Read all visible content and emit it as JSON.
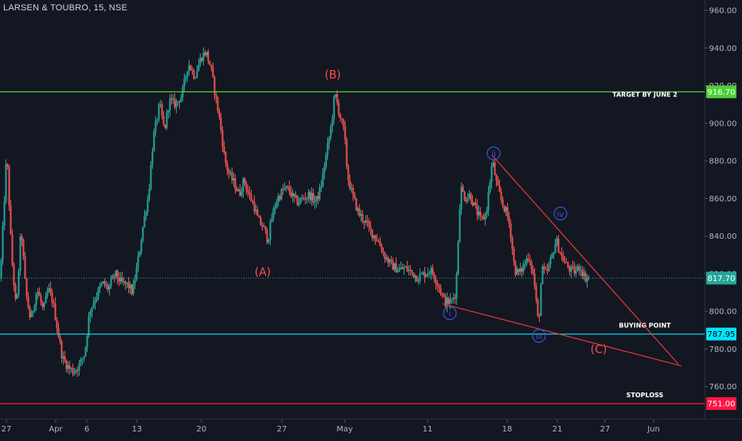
{
  "header": {
    "symbol_title": "LARSEN & TOUBRO, 15, NSE"
  },
  "chart_data": {
    "type": "candlestick",
    "y_axis": {
      "min": 751,
      "max": 960,
      "position": "right",
      "ticks": [
        {
          "v": 960,
          "label": "960.00"
        },
        {
          "v": 940,
          "label": "940.00"
        },
        {
          "v": 920,
          "label": "920.00"
        },
        {
          "v": 900,
          "label": "900.00"
        },
        {
          "v": 880,
          "label": "880.00"
        },
        {
          "v": 860,
          "label": "860.00"
        },
        {
          "v": 840,
          "label": "840.00"
        },
        {
          "v": 820,
          "label": "820.00"
        },
        {
          "v": 800,
          "label": "800.00"
        },
        {
          "v": 780,
          "label": "780.00"
        },
        {
          "v": 760,
          "label": "760.00"
        }
      ]
    },
    "x_axis": {
      "ticks": [
        {
          "label": "27",
          "t": 8
        },
        {
          "label": "Apr",
          "t": 70
        },
        {
          "label": "6",
          "t": 109
        },
        {
          "label": "13",
          "t": 172
        },
        {
          "label": "20",
          "t": 253
        },
        {
          "label": "27",
          "t": 354
        },
        {
          "label": "May",
          "t": 433
        },
        {
          "label": "11",
          "t": 537
        },
        {
          "label": "18",
          "t": 637
        },
        {
          "label": "21",
          "t": 700
        },
        {
          "label": "27",
          "t": 760
        },
        {
          "label": "Jun",
          "t": 821
        }
      ]
    },
    "price_path": [
      [
        0,
        818
      ],
      [
        8,
        885
      ],
      [
        14,
        830
      ],
      [
        20,
        800
      ],
      [
        26,
        845
      ],
      [
        32,
        810
      ],
      [
        38,
        795
      ],
      [
        46,
        812
      ],
      [
        54,
        800
      ],
      [
        60,
        812
      ],
      [
        66,
        805
      ],
      [
        72,
        790
      ],
      [
        78,
        775
      ],
      [
        86,
        770
      ],
      [
        92,
        768
      ],
      [
        100,
        772
      ],
      [
        106,
        778
      ],
      [
        112,
        800
      ],
      [
        120,
        808
      ],
      [
        128,
        815
      ],
      [
        136,
        812
      ],
      [
        144,
        820
      ],
      [
        152,
        815
      ],
      [
        160,
        814
      ],
      [
        166,
        810
      ],
      [
        174,
        830
      ],
      [
        180,
        848
      ],
      [
        186,
        862
      ],
      [
        192,
        892
      ],
      [
        200,
        910
      ],
      [
        206,
        896
      ],
      [
        212,
        912
      ],
      [
        220,
        910
      ],
      [
        228,
        915
      ],
      [
        236,
        932
      ],
      [
        244,
        925
      ],
      [
        252,
        935
      ],
      [
        258,
        938
      ],
      [
        264,
        930
      ],
      [
        270,
        915
      ],
      [
        276,
        900
      ],
      [
        282,
        880
      ],
      [
        288,
        872
      ],
      [
        294,
        868
      ],
      [
        300,
        862
      ],
      [
        306,
        870
      ],
      [
        312,
        862
      ],
      [
        318,
        857
      ],
      [
        324,
        848
      ],
      [
        330,
        845
      ],
      [
        336,
        838
      ],
      [
        342,
        852
      ],
      [
        348,
        860
      ],
      [
        356,
        865
      ],
      [
        362,
        865
      ],
      [
        368,
        860
      ],
      [
        374,
        858
      ],
      [
        380,
        860
      ],
      [
        388,
        862
      ],
      [
        396,
        858
      ],
      [
        402,
        865
      ],
      [
        410,
        885
      ],
      [
        416,
        900
      ],
      [
        420,
        916
      ],
      [
        426,
        905
      ],
      [
        432,
        895
      ],
      [
        436,
        872
      ],
      [
        442,
        862
      ],
      [
        450,
        852
      ],
      [
        458,
        848
      ],
      [
        466,
        842
      ],
      [
        474,
        838
      ],
      [
        482,
        830
      ],
      [
        490,
        825
      ],
      [
        500,
        822
      ],
      [
        508,
        823
      ],
      [
        516,
        821
      ],
      [
        524,
        818
      ],
      [
        532,
        820
      ],
      [
        540,
        822
      ],
      [
        546,
        818
      ],
      [
        552,
        812
      ],
      [
        558,
        805
      ],
      [
        566,
        805
      ],
      [
        572,
        810
      ],
      [
        578,
        866
      ],
      [
        584,
        860
      ],
      [
        590,
        862
      ],
      [
        596,
        855
      ],
      [
        604,
        848
      ],
      [
        610,
        852
      ],
      [
        618,
        880
      ],
      [
        624,
        866
      ],
      [
        630,
        858
      ],
      [
        636,
        852
      ],
      [
        640,
        845
      ],
      [
        646,
        822
      ],
      [
        652,
        820
      ],
      [
        658,
        825
      ],
      [
        664,
        830
      ],
      [
        670,
        818
      ],
      [
        676,
        792
      ],
      [
        680,
        822
      ],
      [
        686,
        820
      ],
      [
        692,
        828
      ],
      [
        698,
        838
      ],
      [
        704,
        830
      ],
      [
        710,
        825
      ],
      [
        716,
        822
      ],
      [
        722,
        821
      ],
      [
        728,
        824
      ],
      [
        734,
        818
      ],
      [
        740,
        817.7
      ]
    ],
    "horizontal_levels": [
      {
        "name": "target",
        "value": 916.7,
        "label": "916.70",
        "color": "#4cd137",
        "text": "TARGET BY JUNE 2",
        "text_color": "#ffffff"
      },
      {
        "name": "current-price",
        "value": 817.7,
        "label": "817.70",
        "color": "#26a69a",
        "dashed": true,
        "text": "",
        "text_color": "#ffffff"
      },
      {
        "name": "buying-point",
        "value": 787.95,
        "label": "787.95",
        "color": "#00e5ff",
        "text": "BUYING POINT",
        "text_color": "#000000"
      },
      {
        "name": "stoploss",
        "value": 751.0,
        "label": "751.00",
        "color": "#ff1744",
        "text": "STOPLOSS",
        "text_color": "#ffffff"
      }
    ],
    "trendlines": [
      {
        "name": "upper-wedge-line",
        "color": "#e53935",
        "from": {
          "t": 618,
          "v": 883
        },
        "to": {
          "t": 852,
          "v": 772
        }
      },
      {
        "name": "lower-wedge-line",
        "color": "#e53935",
        "from": {
          "t": 556,
          "v": 804
        },
        "to": {
          "t": 856,
          "v": 771
        }
      }
    ],
    "wave_labels": [
      {
        "name": "wave-label-A",
        "text": "(A)",
        "t": 330,
        "v": 821,
        "style": "paren",
        "color": "#ff4d4d"
      },
      {
        "name": "wave-label-B",
        "text": "(B)",
        "t": 418,
        "v": 926,
        "style": "paren",
        "color": "#ff4d4d"
      },
      {
        "name": "wave-label-C",
        "text": "(C)",
        "t": 752,
        "v": 780,
        "style": "paren",
        "color": "#ff4d4d"
      },
      {
        "name": "wave-label-i",
        "text": "i",
        "t": 565,
        "v": 799,
        "style": "circle",
        "color": "#3f51d8"
      },
      {
        "name": "wave-label-ii",
        "text": "ii",
        "t": 620,
        "v": 884,
        "style": "circle",
        "color": "#3f51d8"
      },
      {
        "name": "wave-label-iii",
        "text": "iii",
        "t": 677,
        "v": 787,
        "style": "circle",
        "color": "#3f51d8"
      },
      {
        "name": "wave-label-iv",
        "text": "iv",
        "t": 704,
        "v": 852,
        "style": "circle",
        "color": "#3f51d8"
      }
    ],
    "colors": {
      "background": "#131722",
      "up": "#26a69a",
      "down": "#ef5350",
      "axis_text": "#b2b5be",
      "grid": "#1e222d"
    },
    "grid": false
  }
}
